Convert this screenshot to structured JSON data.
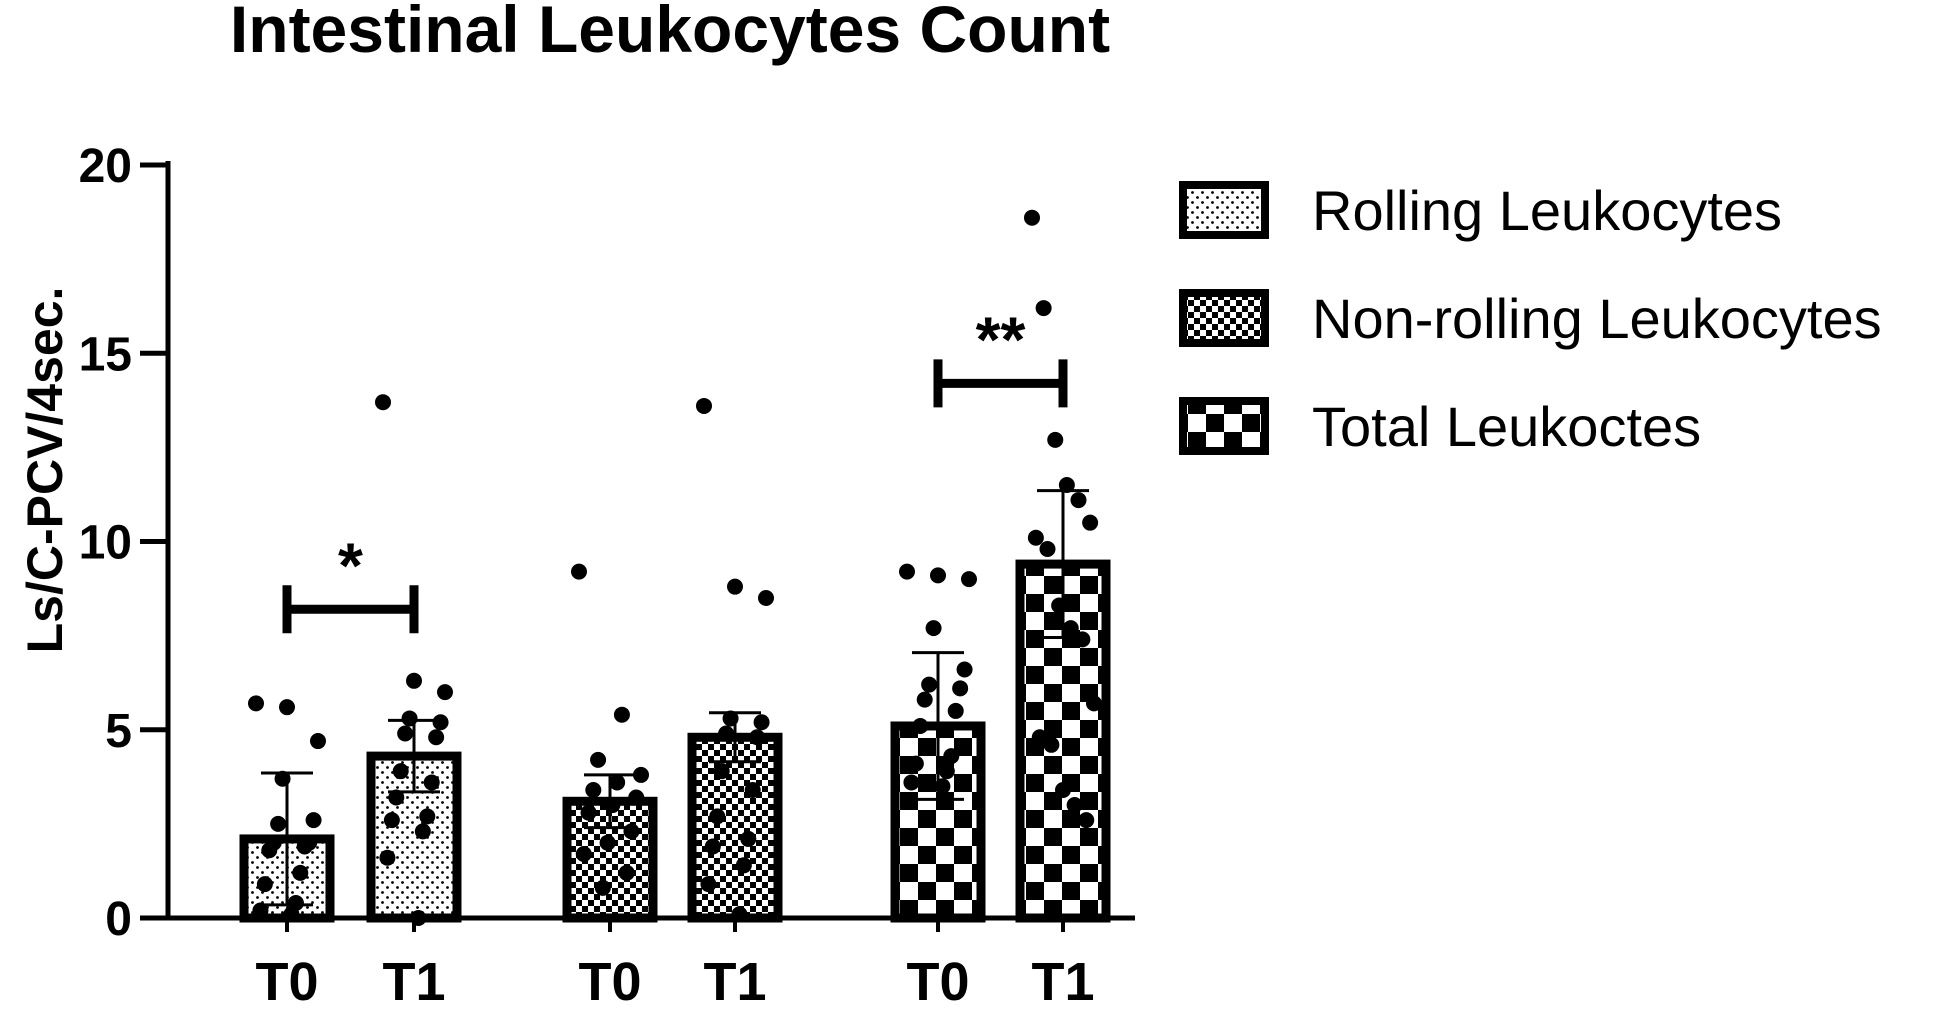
{
  "chart_data": {
    "type": "bar",
    "title": "Intestinal Leukocytes Count",
    "ylabel": "Ls/C-PCV/4sec.",
    "xlabel": "",
    "ylim": [
      0,
      20
    ],
    "yticks": [
      0,
      5,
      10,
      15,
      20
    ],
    "grid": false,
    "legend_position": "right",
    "series": [
      {
        "name": "Rolling Leukocytes",
        "pattern": "dots",
        "groups": [
          {
            "label": "T0",
            "mean": 2.1,
            "sd": 1.75,
            "points": [
              5.7,
              5.6,
              4.7,
              3.7,
              2.6,
              2.5,
              2.0,
              2.0,
              1.9,
              1.8,
              1.2,
              0.9,
              0.4,
              0.2,
              0.1
            ]
          },
          {
            "label": "T1",
            "mean": 4.3,
            "sd": 0.95,
            "points": [
              13.7,
              6.3,
              6.0,
              5.3,
              5.2,
              4.9,
              4.8,
              3.9,
              3.6,
              3.2,
              2.7,
              2.6,
              2.3,
              1.6,
              0.0
            ]
          }
        ]
      },
      {
        "name": "Non-rolling Leukocytes",
        "pattern": "checker-small",
        "groups": [
          {
            "label": "T0",
            "mean": 3.1,
            "sd": 0.7,
            "points": [
              9.2,
              5.4,
              4.2,
              3.8,
              3.6,
              3.4,
              3.2,
              3.0,
              2.8,
              2.3,
              2.0,
              1.7,
              1.2,
              0.8
            ]
          },
          {
            "label": "T1",
            "mean": 4.8,
            "sd": 0.65,
            "points": [
              13.6,
              8.8,
              8.5,
              5.3,
              5.2,
              4.9,
              4.8,
              3.9,
              3.4,
              2.7,
              2.1,
              1.9,
              1.4,
              0.9,
              0.1
            ]
          }
        ]
      },
      {
        "name": "Total Leukoctes",
        "pattern": "checker-large",
        "groups": [
          {
            "label": "T0",
            "mean": 5.1,
            "sd": 1.95,
            "points": [
              9.2,
              9.1,
              9.0,
              7.7,
              6.6,
              6.2,
              6.1,
              5.8,
              5.5,
              5.1,
              4.3,
              4.1,
              3.9,
              3.6,
              3.5
            ]
          },
          {
            "label": "T1",
            "mean": 9.4,
            "sd": 1.95,
            "points": [
              18.6,
              16.2,
              12.7,
              11.5,
              11.1,
              10.5,
              10.1,
              9.8,
              8.3,
              7.7,
              7.4,
              5.7,
              4.8,
              4.6,
              3.4,
              3.0,
              2.6
            ]
          }
        ]
      }
    ],
    "annotations": [
      {
        "text": "*",
        "series": 0,
        "from": "T0",
        "to": "T1",
        "y": 8.2
      },
      {
        "text": "**",
        "series": 2,
        "from": "T0",
        "to": "T1",
        "y": 14.2
      }
    ]
  },
  "colors": {
    "bar_stroke": "#000000",
    "pattern_fill": "#000000",
    "background": "#ffffff"
  }
}
